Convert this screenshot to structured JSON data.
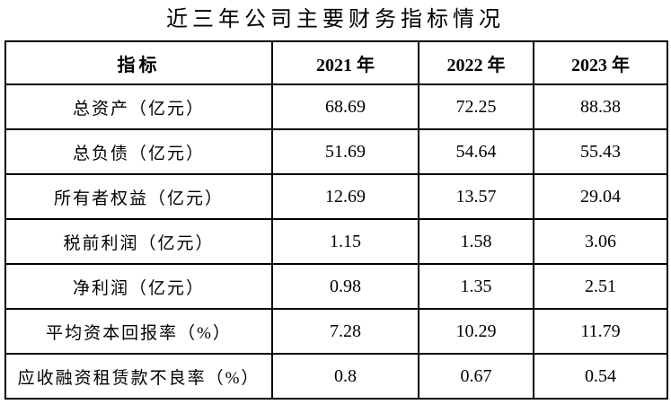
{
  "title": "近三年公司主要财务指标情况",
  "colors": {
    "background": "#ffffff",
    "text": "#000000",
    "border": "#000000"
  },
  "table": {
    "headers": [
      "指标",
      "2021 年",
      "2022 年",
      "2023 年"
    ],
    "rows": [
      {
        "label": "总资产（亿元）",
        "values": [
          "68.69",
          "72.25",
          "88.38"
        ]
      },
      {
        "label": "总负债（亿元）",
        "values": [
          "51.69",
          "54.64",
          "55.43"
        ]
      },
      {
        "label": "所有者权益（亿元）",
        "values": [
          "12.69",
          "13.57",
          "29.04"
        ]
      },
      {
        "label": "税前利润（亿元）",
        "values": [
          "1.15",
          "1.58",
          "3.06"
        ]
      },
      {
        "label": "净利润（亿元）",
        "values": [
          "0.98",
          "1.35",
          "2.51"
        ]
      },
      {
        "label": "平均资本回报率（%）",
        "values": [
          "7.28",
          "10.29",
          "11.79"
        ]
      },
      {
        "label": "应收融资租赁款不良率（%）",
        "values": [
          "0.8",
          "0.67",
          "0.54"
        ]
      }
    ]
  },
  "chart_data": {
    "type": "table",
    "title": "近三年公司主要财务指标情况",
    "columns": [
      "指标",
      "2021 年",
      "2022 年",
      "2023 年"
    ],
    "cells": [
      [
        "总资产（亿元）",
        68.69,
        72.25,
        88.38
      ],
      [
        "总负债（亿元）",
        51.69,
        54.64,
        55.43
      ],
      [
        "所有者权益（亿元）",
        12.69,
        13.57,
        29.04
      ],
      [
        "税前利润（亿元）",
        1.15,
        1.58,
        3.06
      ],
      [
        "净利润（亿元）",
        0.98,
        1.35,
        2.51
      ],
      [
        "平均资本回报率（%）",
        7.28,
        10.29,
        11.79
      ],
      [
        "应收融资租赁款不良率（%）",
        0.8,
        0.67,
        0.54
      ]
    ]
  }
}
